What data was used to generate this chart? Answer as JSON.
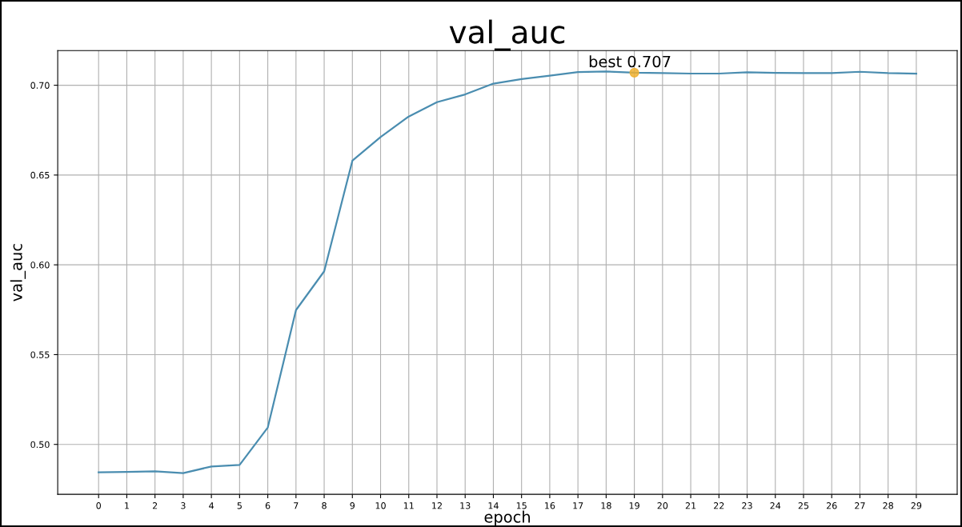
{
  "chart_data": {
    "type": "line",
    "title": "val_auc",
    "xlabel": "epoch",
    "ylabel": "val_auc",
    "x": [
      0,
      1,
      2,
      3,
      4,
      5,
      6,
      7,
      8,
      9,
      10,
      11,
      12,
      13,
      14,
      15,
      16,
      17,
      18,
      19,
      20,
      21,
      22,
      23,
      24,
      25,
      26,
      27,
      28,
      29
    ],
    "series": [
      {
        "color": "#4a8db0",
        "values": [
          0.4845,
          0.4847,
          0.485,
          0.484,
          0.4877,
          0.4886,
          0.5094,
          0.5748,
          0.5964,
          0.658,
          0.6712,
          0.6826,
          0.6906,
          0.6949,
          0.7009,
          0.7034,
          0.7053,
          0.7073,
          0.7077,
          0.707,
          0.7068,
          0.7065,
          0.7065,
          0.7072,
          0.7069,
          0.7068,
          0.7068,
          0.7075,
          0.7068,
          0.7065
        ]
      },
      {
        "type": "scatter",
        "marker": "circle",
        "color": "#f0b030",
        "x": [
          19
        ],
        "values": [
          0.707
        ]
      }
    ],
    "annotations": [
      {
        "text": "best 0.707",
        "x": 19,
        "y": 0.707
      }
    ],
    "xlim": [
      -1.45,
      30.45
    ],
    "ylim": [
      0.4722,
      0.7193
    ],
    "xticks": [
      0,
      1,
      2,
      3,
      4,
      5,
      6,
      7,
      8,
      9,
      10,
      11,
      12,
      13,
      14,
      15,
      16,
      17,
      18,
      19,
      20,
      21,
      22,
      23,
      24,
      25,
      26,
      27,
      28,
      29
    ],
    "yticks": [
      {
        "value": 0.5,
        "label": "0.50"
      },
      {
        "value": 0.55,
        "label": "0.55"
      },
      {
        "value": 0.6,
        "label": "0.60"
      },
      {
        "value": 0.65,
        "label": "0.65"
      },
      {
        "value": 0.7,
        "label": "0.70"
      }
    ],
    "grid": true,
    "marker": "none",
    "line_style": "solid"
  }
}
